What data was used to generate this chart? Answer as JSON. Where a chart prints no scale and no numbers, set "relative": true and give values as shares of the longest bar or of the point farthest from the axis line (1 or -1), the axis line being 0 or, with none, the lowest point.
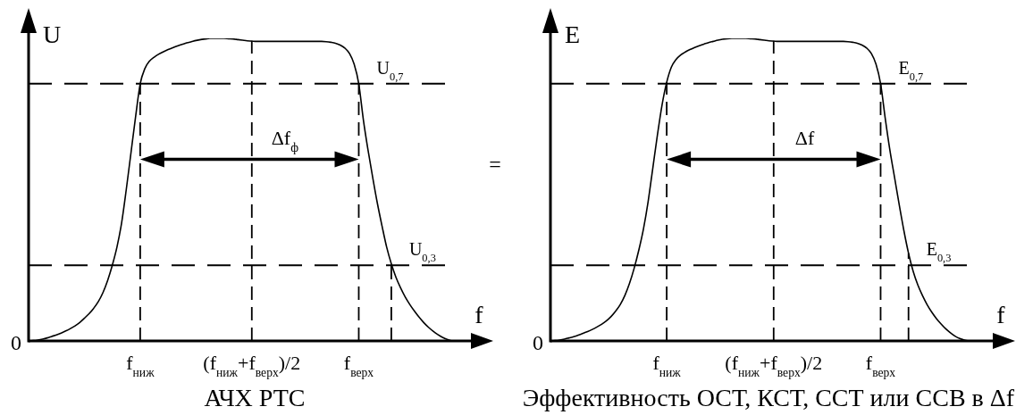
{
  "chart_data": [
    {
      "type": "line",
      "xlabel": "f",
      "ylabel": "U",
      "relative": true,
      "color": "#000000",
      "categories": [
        null,
        null,
        null,
        null,
        null,
        null,
        null,
        null,
        null,
        null,
        null,
        null,
        null,
        null,
        null,
        null,
        null,
        null,
        null,
        null,
        null,
        null,
        null,
        null,
        "f$_{ниж}$",
        null,
        null,
        null,
        null,
        null,
        null,
        null,
        null,
        null,
        null,
        null,
        null,
        null,
        null,
        null,
        null,
        null,
        null,
        null,
        null,
        null,
        null,
        null,
        "(f$_{ниж}$+f$_{верх}$)/2",
        null,
        null,
        null,
        null,
        null,
        null,
        null,
        null,
        null,
        null,
        null,
        null,
        null,
        null,
        null,
        null,
        null,
        null,
        null,
        null,
        null,
        null,
        "f$_{верх}$",
        null,
        null,
        null,
        null,
        null,
        null,
        null,
        null,
        null,
        null,
        null,
        null,
        null,
        null,
        null,
        null,
        null,
        null,
        null,
        null,
        null,
        null,
        null,
        null,
        null,
        null,
        null
      ],
      "values": [
        0,
        0.001,
        0.003,
        0.006,
        0.01,
        0.015,
        0.02,
        0.026,
        0.033,
        0.041,
        0.05,
        0.061,
        0.075,
        0.09,
        0.108,
        0.13,
        0.16,
        0.2,
        0.25,
        0.31,
        0.39,
        0.5,
        0.62,
        0.74,
        0.85,
        0.9,
        0.925,
        0.938,
        0.948,
        0.956,
        0.963,
        0.969,
        0.975,
        0.98,
        0.985,
        0.989,
        0.993,
        0.996,
        0.998,
        1,
        1,
        1,
        1,
        0.999,
        0.998,
        0.996,
        0.994,
        0.992,
        0.991,
        0.99,
        0.99,
        0.99,
        0.99,
        0.99,
        0.99,
        0.99,
        0.99,
        0.99,
        0.99,
        0.99,
        0.99,
        0.99,
        0.99,
        0.99,
        0.989,
        0.987,
        0.984,
        0.978,
        0.968,
        0.95,
        0.915,
        0.85,
        0.73,
        0.63,
        0.54,
        0.455,
        0.38,
        0.31,
        0.255,
        0.21,
        0.175,
        0.145,
        0.12,
        0.098,
        0.078,
        0.06,
        0.045,
        0.032,
        0.021,
        0.012,
        0.005,
        0,
        null,
        null,
        null,
        null,
        null,
        null,
        null
      ],
      "ref_lines": [
        {
          "axis": "y",
          "value": 0.85,
          "label": "U$_{0,7}$",
          "color": "#000000",
          "line_style": "dashed"
        },
        {
          "axis": "y",
          "value": 0.25,
          "label": "U$_{0,3}$",
          "color": "#000000",
          "line_style": "dashed"
        },
        {
          "axis": "x",
          "value": "f$_{ниж}$",
          "color": "#000000",
          "line_style": "dashed"
        },
        {
          "axis": "x",
          "value": "(f$_{ниж}$+f$_{верх}$)/2",
          "color": "#000000",
          "line_style": "dashed"
        },
        {
          "axis": "x",
          "value": "f$_{верх}$",
          "color": "#000000",
          "line_style": "dashed"
        }
      ],
      "annotations": [
        "0",
        "Δf$_{ф}$",
        "АЧХ РТС",
        "="
      ]
    },
    {
      "type": "line",
      "xlabel": "f",
      "ylabel": "E",
      "relative": true,
      "color": "#000000",
      "categories": [
        null,
        null,
        null,
        null,
        null,
        null,
        null,
        null,
        null,
        null,
        null,
        null,
        null,
        null,
        null,
        null,
        null,
        null,
        null,
        null,
        null,
        null,
        null,
        null,
        null,
        "f$_{ниж}$",
        null,
        null,
        null,
        null,
        null,
        null,
        null,
        null,
        null,
        null,
        null,
        null,
        null,
        null,
        null,
        null,
        null,
        null,
        null,
        null,
        null,
        null,
        "(f$_{ниж}$+f$_{верх}$)/2",
        null,
        null,
        null,
        null,
        null,
        null,
        null,
        null,
        null,
        null,
        null,
        null,
        null,
        null,
        null,
        null,
        null,
        null,
        null,
        null,
        null,
        null,
        "f$_{верх}$",
        null,
        null,
        null,
        null,
        null,
        null,
        null,
        null,
        null,
        null,
        null,
        null,
        null,
        null,
        null,
        null,
        null,
        null,
        null,
        null,
        null,
        null,
        null,
        null,
        null,
        null,
        null
      ],
      "values": [
        0,
        0.001,
        0.003,
        0.006,
        0.01,
        0.014,
        0.019,
        0.025,
        0.031,
        0.038,
        0.046,
        0.055,
        0.066,
        0.08,
        0.098,
        0.12,
        0.15,
        0.19,
        0.24,
        0.3,
        0.37,
        0.46,
        0.57,
        0.68,
        0.78,
        0.855,
        0.905,
        0.93,
        0.945,
        0.955,
        0.963,
        0.97,
        0.976,
        0.981,
        0.986,
        0.99,
        0.994,
        0.997,
        0.999,
        1,
        1,
        1,
        1,
        0.999,
        0.998,
        0.996,
        0.994,
        0.992,
        0.991,
        0.99,
        0.99,
        0.99,
        0.99,
        0.99,
        0.99,
        0.99,
        0.99,
        0.99,
        0.99,
        0.99,
        0.99,
        0.99,
        0.99,
        0.99,
        0.989,
        0.987,
        0.984,
        0.978,
        0.968,
        0.95,
        0.915,
        0.85,
        0.735,
        0.63,
        0.54,
        0.45,
        0.365,
        0.29,
        0.23,
        0.185,
        0.15,
        0.12,
        0.095,
        0.074,
        0.056,
        0.04,
        0.027,
        0.016,
        0.008,
        0.003,
        0,
        null,
        null,
        null,
        null,
        null,
        null,
        null,
        null
      ],
      "ref_lines": [
        {
          "axis": "y",
          "value": 0.85,
          "label": "E$_{0,7}$",
          "color": "#000000",
          "line_style": "dashed"
        },
        {
          "axis": "y",
          "value": 0.25,
          "label": "E$_{0,3}$",
          "color": "#000000",
          "line_style": "dashed"
        },
        {
          "axis": "x",
          "value": "f$_{ниж}$",
          "color": "#000000",
          "line_style": "dashed"
        },
        {
          "axis": "x",
          "value": "(f$_{ниж}$+f$_{верх}$)/2",
          "color": "#000000",
          "line_style": "dashed"
        },
        {
          "axis": "x",
          "value": "f$_{верх}$",
          "color": "#000000",
          "line_style": "dashed"
        }
      ],
      "annotations": [
        "0",
        "Δf",
        "Эффективность ОСТ, КСТ, ССТ или ССВ в Δf"
      ]
    }
  ]
}
